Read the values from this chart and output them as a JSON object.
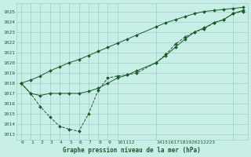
{
  "title": "Graphe pression niveau de la mer (hPa)",
  "bg_color": "#c8eee8",
  "grid_color": "#9ecfbf",
  "line_color": "#1a5c2a",
  "xlim": [
    -0.5,
    23.5
  ],
  "ylim": [
    1012.5,
    1025.8
  ],
  "yticks": [
    1013,
    1014,
    1015,
    1016,
    1017,
    1018,
    1019,
    1020,
    1021,
    1022,
    1023,
    1024,
    1025
  ],
  "line1_x": [
    0,
    1,
    2,
    3,
    4,
    5,
    6,
    7,
    8,
    9,
    10,
    11,
    12,
    14,
    15,
    16,
    17,
    18,
    19,
    20,
    21,
    22,
    23
  ],
  "line1_y": [
    1018.0,
    1017.0,
    1015.7,
    1014.7,
    1013.8,
    1013.5,
    1013.3,
    1015.0,
    1017.3,
    1018.5,
    1018.7,
    1018.8,
    1019.0,
    1020.0,
    1020.8,
    1021.8,
    1022.5,
    1023.0,
    1023.3,
    1023.9,
    1024.2,
    1024.8,
    1025.0
  ],
  "line2_x": [
    0,
    1,
    2,
    3,
    4,
    5,
    6,
    7,
    8,
    9,
    10,
    11,
    12,
    14,
    15,
    16,
    17,
    18,
    19,
    20,
    21,
    22,
    23
  ],
  "line2_y": [
    1018.0,
    1017.0,
    1016.8,
    1017.0,
    1017.0,
    1017.0,
    1017.0,
    1017.2,
    1017.5,
    1018.0,
    1018.5,
    1018.8,
    1019.2,
    1020.0,
    1020.7,
    1021.5,
    1022.3,
    1023.0,
    1023.4,
    1023.9,
    1024.2,
    1024.8,
    1025.1
  ],
  "line3_x": [
    0,
    1,
    2,
    3,
    4,
    5,
    6,
    7,
    8,
    9,
    10,
    11,
    12,
    14,
    15,
    16,
    17,
    18,
    19,
    20,
    21,
    22,
    23
  ],
  "line3_y": [
    1018.0,
    1018.3,
    1018.7,
    1019.2,
    1019.6,
    1020.0,
    1020.3,
    1020.7,
    1021.1,
    1021.5,
    1021.9,
    1022.3,
    1022.7,
    1023.5,
    1023.9,
    1024.2,
    1024.5,
    1024.8,
    1025.0,
    1025.1,
    1025.2,
    1025.3,
    1025.4
  ],
  "xtick_positions": [
    0,
    1,
    2,
    3,
    4,
    5,
    6,
    7,
    8,
    9,
    10,
    14,
    22
  ],
  "xtick_labels": [
    "0",
    "1",
    "2",
    "3",
    "4",
    "5",
    "6",
    "7",
    "8",
    "9",
    "101112",
    "14151617181920212223",
    ""
  ]
}
